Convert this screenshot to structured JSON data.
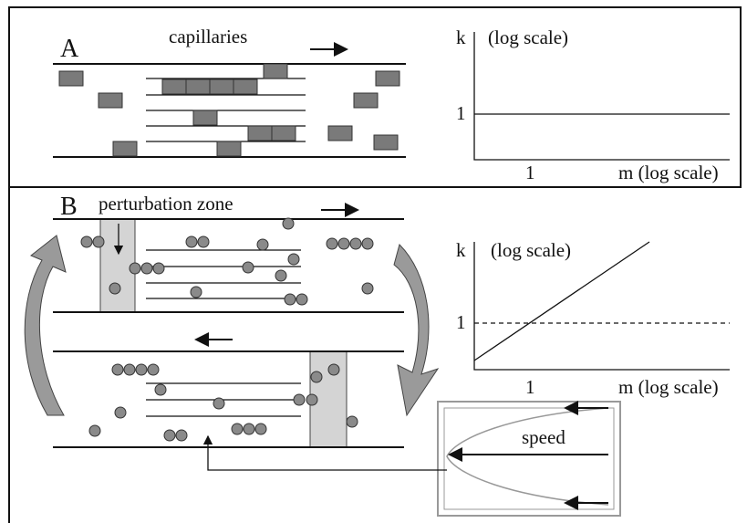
{
  "panels": [
    {
      "label": "A",
      "title": "capillaries",
      "graph": {
        "y_label": "k",
        "y_unit": "(log scale)",
        "y_tick": "1",
        "x_tick": "1",
        "x_label": "m (log scale)"
      }
    },
    {
      "label": "B",
      "title": "perturbation zone",
      "graph": {
        "y_label": "k",
        "y_unit": "(log scale)",
        "y_tick": "1",
        "x_tick": "1",
        "x_label": "m (log scale)"
      },
      "flow_label": "speed"
    }
  ]
}
